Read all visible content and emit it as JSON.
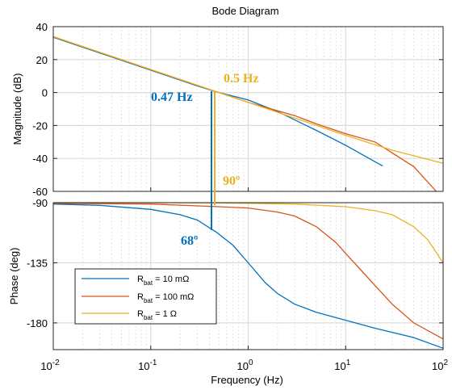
{
  "chart_data": {
    "type": "line",
    "title": "Bode Diagram",
    "xlabel": "Frequency  (Hz)",
    "x_scale": "log",
    "xlim": [
      0.01,
      100
    ],
    "x_ticks": [
      {
        "value": 0.01,
        "base": "10",
        "exp": "-2"
      },
      {
        "value": 0.1,
        "base": "10",
        "exp": "-1"
      },
      {
        "value": 1,
        "base": "10",
        "exp": "0"
      },
      {
        "value": 10,
        "base": "10",
        "exp": "1"
      },
      {
        "value": 100,
        "base": "10",
        "exp": "2"
      }
    ],
    "grid": true,
    "colors": {
      "blue": "#0072BD",
      "orange": "#D95319",
      "yellow": "#EDB120"
    },
    "magnitude": {
      "ylabel": "Magnitude (dB)",
      "ylim": [
        -60,
        40
      ],
      "y_ticks": [
        "40",
        "20",
        "0",
        "-20",
        "-40",
        "-60"
      ],
      "series": [
        {
          "color": "#0072BD",
          "x": [
            0.01,
            0.1,
            0.3,
            0.47,
            1,
            2,
            5,
            10,
            20,
            24
          ],
          "y": [
            33.6,
            13.6,
            4.0,
            0.4,
            -4.5,
            -11.5,
            -23,
            -32,
            -42,
            -44.6
          ]
        },
        {
          "color": "#D95319",
          "x": [
            0.01,
            0.1,
            0.5,
            1,
            3,
            5,
            10,
            20,
            50,
            85
          ],
          "y": [
            33.9,
            13.9,
            0.0,
            -6,
            -14,
            -19,
            -25,
            -30,
            -45,
            -60
          ]
        },
        {
          "color": "#EDB120",
          "x": [
            0.01,
            0.1,
            0.5,
            1,
            10,
            30,
            100
          ],
          "y": [
            34.0,
            14.0,
            0.0,
            -6,
            -26,
            -35,
            -43
          ]
        }
      ]
    },
    "phase": {
      "ylabel": "Phase (deg)",
      "ylim": [
        -200,
        -90
      ],
      "y_ticks": [
        "-90",
        "-135",
        "-180"
      ],
      "series": [
        {
          "color": "#0072BD",
          "x": [
            0.01,
            0.03,
            0.1,
            0.2,
            0.3,
            0.47,
            0.7,
            1,
            1.5,
            2,
            3,
            5,
            10,
            20,
            50,
            100
          ],
          "y": [
            -91,
            -92,
            -95,
            -99,
            -103,
            -112,
            -122,
            -135,
            -150,
            -158,
            -166,
            -172,
            -178,
            -184,
            -191,
            -199
          ]
        },
        {
          "color": "#D95319",
          "x": [
            0.01,
            0.1,
            0.5,
            1,
            2,
            3,
            5,
            8,
            10,
            15,
            20,
            30,
            50,
            100
          ],
          "y": [
            -90.5,
            -91,
            -93,
            -94,
            -97,
            -100,
            -108,
            -120,
            -128,
            -142,
            -152,
            -166,
            -180,
            -192
          ]
        },
        {
          "color": "#EDB120",
          "x": [
            0.01,
            0.1,
            0.5,
            1,
            3,
            10,
            20,
            30,
            50,
            70,
            100
          ],
          "y": [
            -90,
            -90,
            -90.2,
            -90.5,
            -91,
            -93,
            -96,
            -99,
            -108,
            -118,
            -135
          ]
        }
      ]
    },
    "annotations": [
      {
        "text": "0.5 Hz",
        "color": "#EDB120"
      },
      {
        "text": "0.47 Hz",
        "color": "#0072BD"
      },
      {
        "text": "90º",
        "color": "#EDB120"
      },
      {
        "text": "68º",
        "color": "#0072BD"
      }
    ],
    "legend": {
      "placement": "lower-left",
      "entries": [
        {
          "main": "R",
          "sub": "bat",
          "rest": " = 10 mΩ",
          "color": "#0072BD"
        },
        {
          "main": "R",
          "sub": "bat",
          "rest": " = 100 mΩ",
          "color": "#D95319"
        },
        {
          "main": "R",
          "sub": "bat",
          "rest": " = 1 Ω",
          "color": "#EDB120"
        }
      ]
    }
  }
}
